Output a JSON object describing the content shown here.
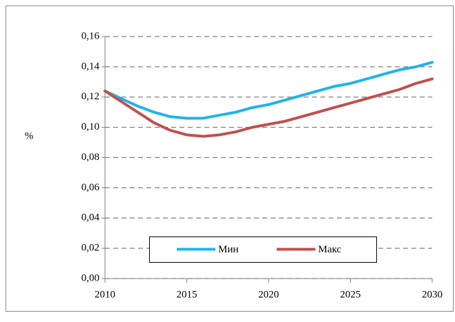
{
  "chart_data": {
    "type": "line",
    "ylabel": "%",
    "x": [
      2010,
      2011,
      2012,
      2013,
      2014,
      2015,
      2016,
      2017,
      2018,
      2019,
      2020,
      2021,
      2022,
      2023,
      2024,
      2025,
      2026,
      2027,
      2028,
      2029,
      2030
    ],
    "series": [
      {
        "name": "Мин",
        "color": "#1fb4e8",
        "values": [
          0.124,
          0.119,
          0.114,
          0.11,
          0.107,
          0.106,
          0.106,
          0.108,
          0.11,
          0.113,
          0.115,
          0.118,
          0.121,
          0.124,
          0.127,
          0.129,
          0.132,
          0.135,
          0.138,
          0.14,
          0.143
        ]
      },
      {
        "name": "Макс",
        "color": "#c0504d",
        "values": [
          0.124,
          0.117,
          0.11,
          0.103,
          0.098,
          0.095,
          0.094,
          0.095,
          0.097,
          0.1,
          0.102,
          0.104,
          0.107,
          0.11,
          0.113,
          0.116,
          0.119,
          0.122,
          0.125,
          0.129,
          0.132
        ]
      }
    ],
    "xlim": [
      2010,
      2030
    ],
    "xticks": [
      2010,
      2015,
      2020,
      2025,
      2030
    ],
    "ylim": [
      0,
      0.16
    ],
    "yticks": [
      {
        "value": 0,
        "label": "0,00"
      },
      {
        "value": 0.02,
        "label": "0,02"
      },
      {
        "value": 0.04,
        "label": "0,04"
      },
      {
        "value": 0.06,
        "label": "0,06"
      },
      {
        "value": 0.08,
        "label": "0,08"
      },
      {
        "value": 0.1,
        "label": "0,10"
      },
      {
        "value": 0.12,
        "label": "0,12"
      },
      {
        "value": 0.14,
        "label": "0,14"
      },
      {
        "value": 0.16,
        "label": "0,16"
      }
    ],
    "grid": true,
    "legend": "bottom"
  }
}
